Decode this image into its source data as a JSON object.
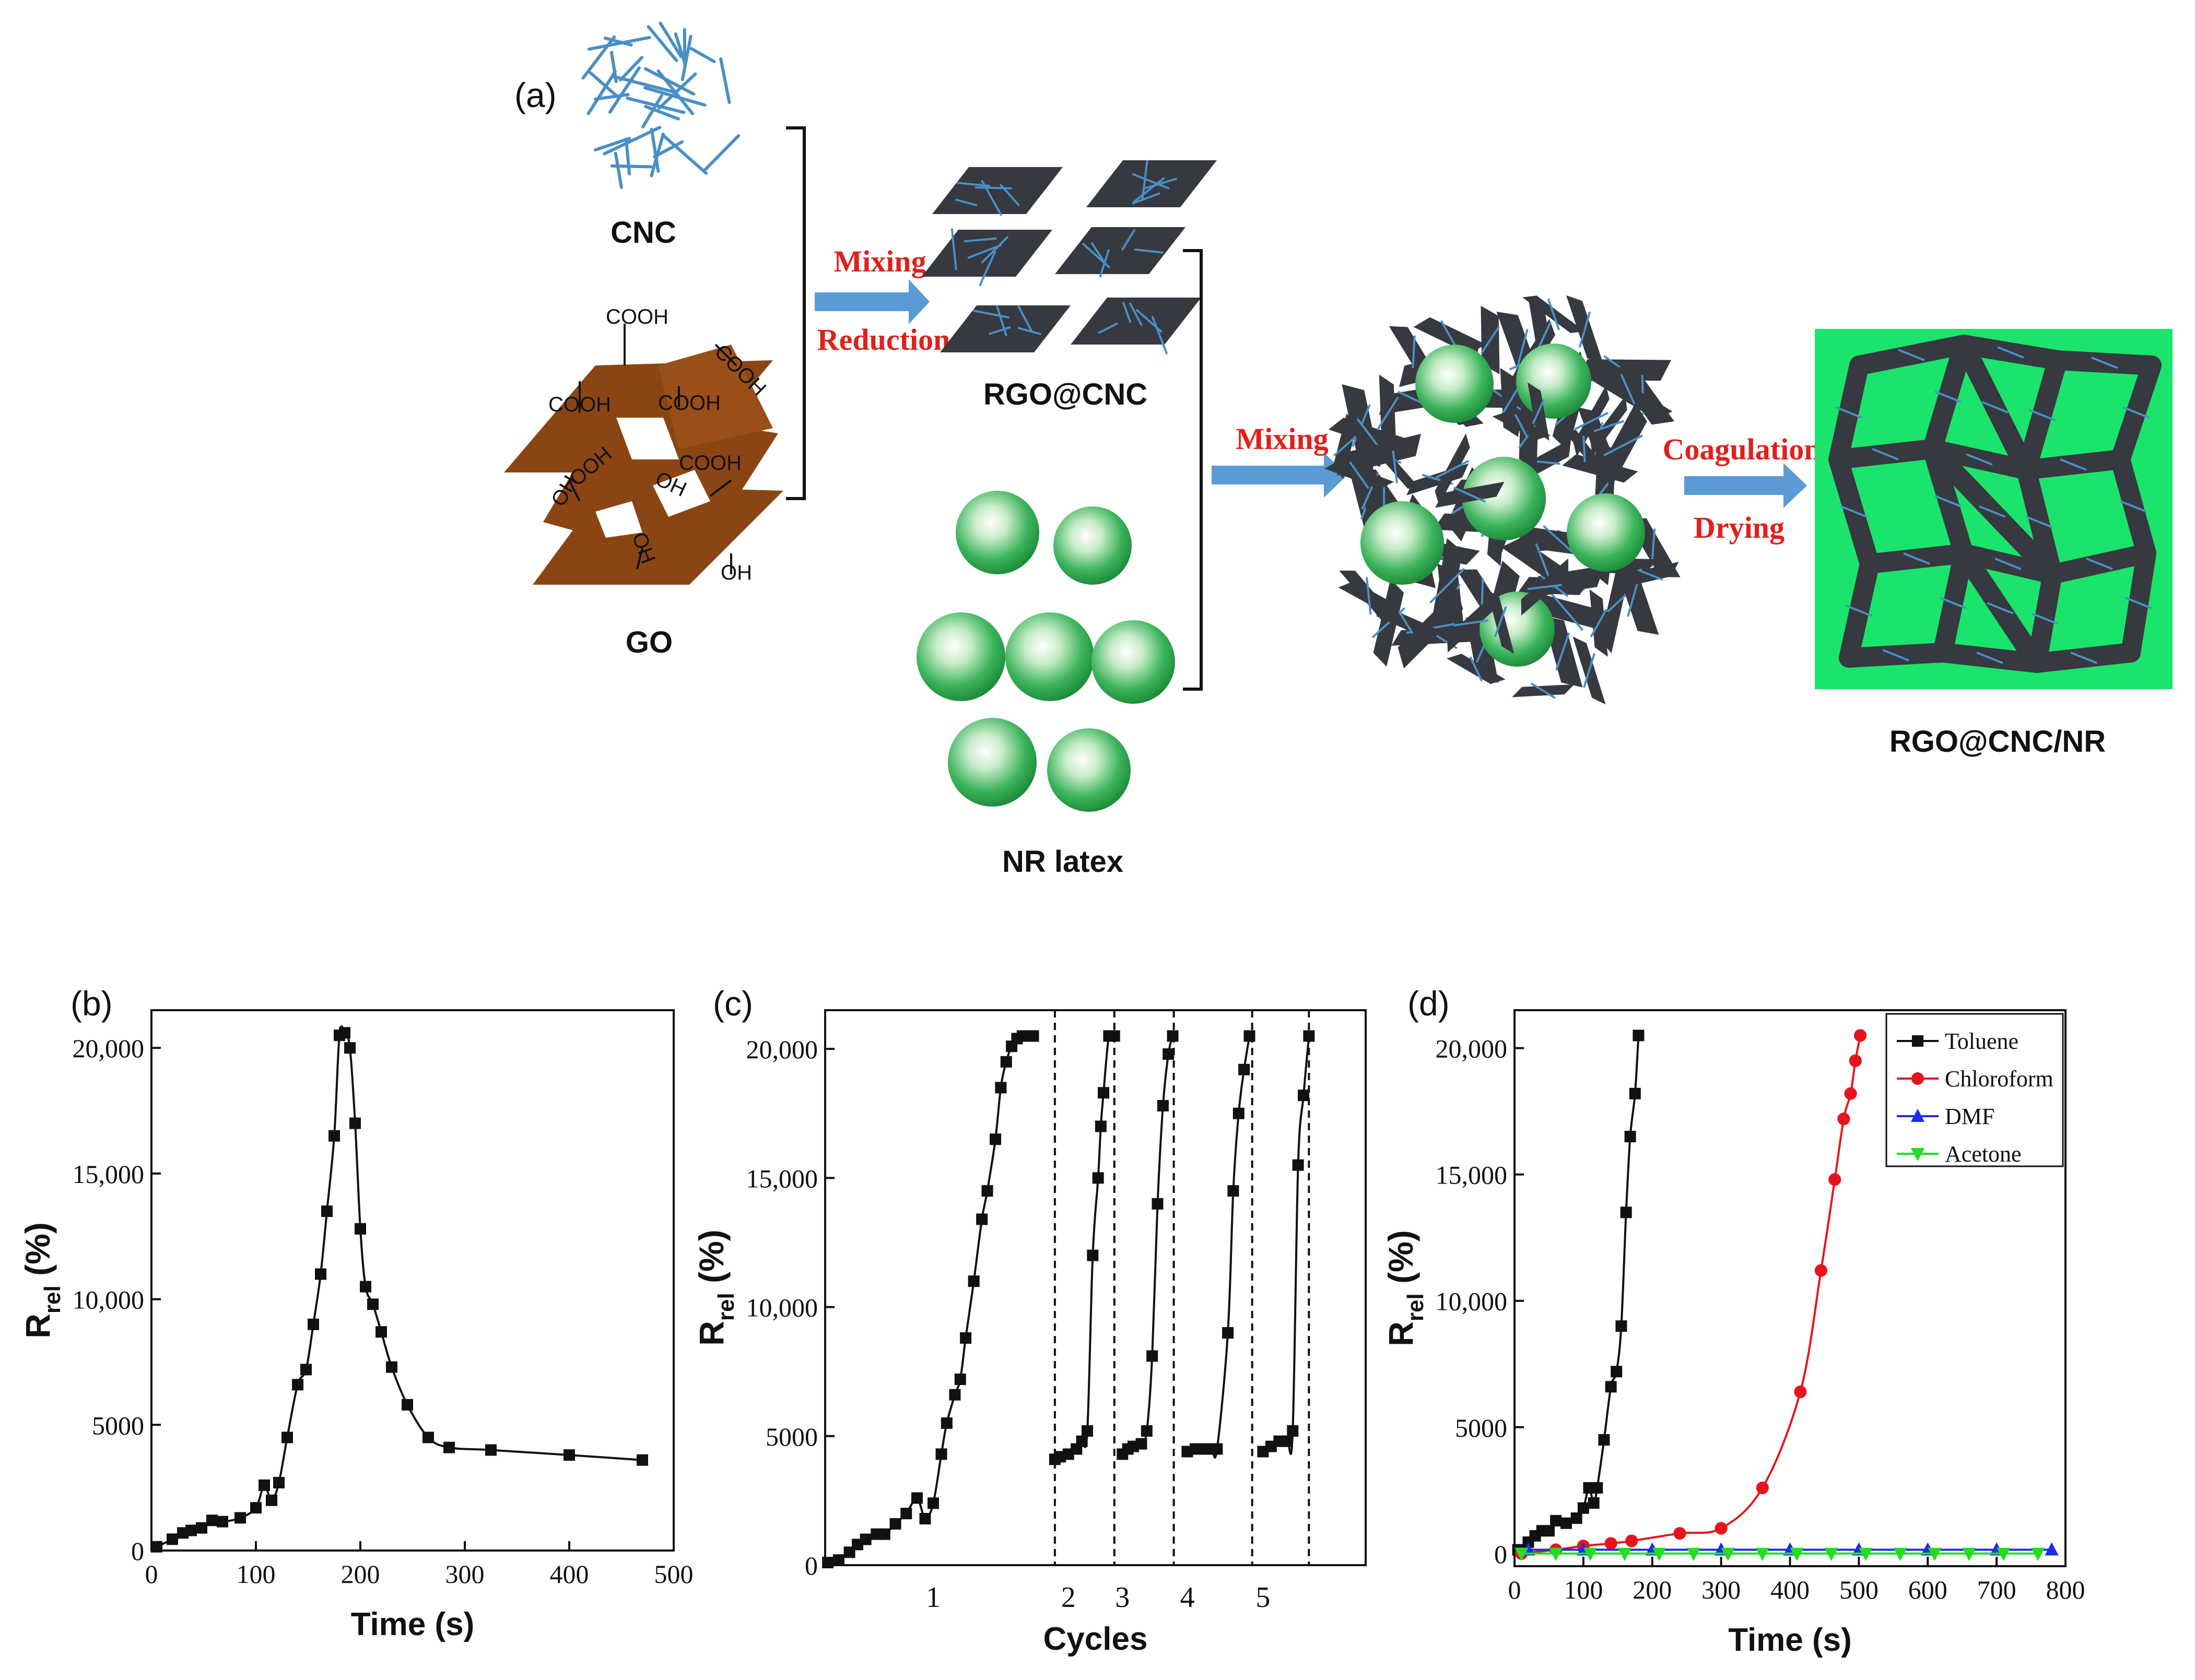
{
  "scheme": {
    "panel_label": "(a)",
    "labels": {
      "cnc": "CNC",
      "go": "GO",
      "rgo_cnc": "RGO@CNC",
      "nr_latex": "NR latex",
      "composite": "RGO@CNC/NR"
    },
    "go_groups": [
      "COOH",
      "COOH",
      "COOH",
      "COOH",
      "COOH",
      "OOH",
      "OH",
      "OH",
      "OH",
      "OH"
    ],
    "arrows": {
      "step1": [
        "Mixing",
        "Reduction"
      ],
      "step2": [
        "Mixing"
      ],
      "step3": [
        "Coagulation",
        "Drying"
      ]
    },
    "colors": {
      "cnc": "#4a8fc4",
      "go": "#8b4513",
      "rgo": "#36393f",
      "latex": "#3cb45c",
      "matrix": "#1be46c",
      "arrow": "#5b9bd5",
      "arrow_text": "#e0201c"
    }
  },
  "chart_data": [
    {
      "id": "b",
      "panel_label": "(b)",
      "type": "line",
      "xlabel": "Time (s)",
      "ylabel_main": "R",
      "ylabel_sub": "rel",
      "ylabel_tail": " (%)",
      "xlim": [
        0,
        500
      ],
      "ylim": [
        0,
        21500
      ],
      "xticks": [
        0,
        100,
        200,
        300,
        400,
        500
      ],
      "yticks": [
        0,
        5000,
        10000,
        15000,
        20000
      ],
      "ytick_labels": [
        "0",
        "5000",
        "10,000",
        "15,000",
        "20,000"
      ],
      "marker": "square",
      "series": [
        {
          "color": "#111111",
          "x": [
            5,
            20,
            30,
            38,
            48,
            58,
            68,
            85,
            100,
            108,
            115,
            122,
            130,
            140,
            148,
            155,
            162,
            168,
            175,
            180,
            185,
            190,
            195,
            200,
            205,
            212,
            220,
            230,
            245,
            265,
            285,
            325,
            400,
            470
          ],
          "y": [
            150,
            450,
            700,
            800,
            900,
            1200,
            1150,
            1300,
            1700,
            2600,
            2000,
            2700,
            4500,
            6600,
            7200,
            9000,
            11000,
            13500,
            16500,
            20500,
            20600,
            20000,
            17000,
            12800,
            10500,
            9800,
            8700,
            7300,
            5800,
            4500,
            4100,
            4000,
            3800,
            3600
          ]
        }
      ]
    },
    {
      "id": "c",
      "panel_label": "(c)",
      "type": "line",
      "xlabel": "Cycles",
      "ylabel_main": "R",
      "ylabel_sub": "rel",
      "ylabel_tail": " (%)",
      "xlim": [
        0,
        100
      ],
      "ylim": [
        0,
        21500
      ],
      "xticks": [],
      "yticks": [
        0,
        5000,
        10000,
        15000,
        20000
      ],
      "ytick_labels": [
        "0",
        "5000",
        "10,000",
        "15,000",
        "20,000"
      ],
      "category_labels": [
        {
          "label": "1",
          "x": 20
        },
        {
          "label": "2",
          "x": 45
        },
        {
          "label": "3",
          "x": 55
        },
        {
          "label": "4",
          "x": 67
        },
        {
          "label": "5",
          "x": 81
        }
      ],
      "dividers": [
        42.5,
        53.5,
        64.5,
        79,
        89.5
      ],
      "marker": "square",
      "series": [
        {
          "color": "#111111",
          "segments": [
            {
              "x": [
                0.5,
                2.5,
                4.5,
                6,
                7.5,
                9.5,
                11,
                13,
                15,
                17,
                18.5,
                20,
                21.5,
                22.5,
                24,
                25,
                26,
                27.5,
                29,
                30,
                31.5,
                32.5,
                33.5,
                34.5,
                35.5,
                36.5,
                37.5,
                38.5
              ],
              "y": [
                100,
                200,
                500,
                800,
                1000,
                1200,
                1200,
                1600,
                2000,
                2600,
                1800,
                2400,
                4300,
                5500,
                6600,
                7200,
                8800,
                11000,
                13400,
                14500,
                16500,
                18500,
                19500,
                20100,
                20400,
                20500,
                20500,
                20500
              ]
            },
            {
              "x": [
                42.5,
                43.5,
                45,
                46.5,
                47.5,
                48.5,
                49.5,
                50.5,
                51,
                51.5,
                52.5,
                53.5
              ],
              "y": [
                4100,
                4200,
                4300,
                4500,
                4800,
                5200,
                12000,
                15000,
                17000,
                18300,
                20500,
                20500
              ]
            },
            {
              "x": [
                55,
                56,
                57,
                58.5,
                59.5,
                60.5,
                61.5,
                62.5,
                63.5,
                64.3
              ],
              "y": [
                4300,
                4500,
                4600,
                4700,
                5200,
                8100,
                14000,
                17800,
                19800,
                20500
              ]
            },
            {
              "x": [
                67,
                68.5,
                70,
                71.5,
                72.5,
                74.5,
                75.5,
                76.5,
                77.5,
                78.5
              ],
              "y": [
                4400,
                4500,
                4500,
                4500,
                4500,
                9000,
                14500,
                17500,
                19200,
                20500
              ]
            },
            {
              "x": [
                81,
                82.5,
                84,
                85.5,
                86.5,
                87.5,
                88.5,
                89.5
              ],
              "y": [
                4400,
                4600,
                4800,
                4800,
                5200,
                15500,
                18200,
                20500
              ]
            }
          ]
        }
      ]
    },
    {
      "id": "d",
      "panel_label": "(d)",
      "type": "line",
      "xlabel": "Time (s)",
      "ylabel_main": "R",
      "ylabel_sub": "rel",
      "ylabel_tail": " (%)",
      "xlim": [
        0,
        800
      ],
      "ylim": [
        -500,
        21500
      ],
      "xticks": [
        0,
        100,
        200,
        300,
        400,
        500,
        600,
        700,
        800
      ],
      "yticks": [
        0,
        5000,
        10000,
        15000,
        20000
      ],
      "ytick_labels": [
        "0",
        "5000",
        "10,000",
        "15,000",
        "20,000"
      ],
      "legend_position": "top-right",
      "series": [
        {
          "name": "Toluene",
          "color": "#111111",
          "marker": "square",
          "x": [
            5,
            20,
            30,
            40,
            50,
            60,
            75,
            90,
            100,
            108,
            115,
            120,
            130,
            140,
            148,
            155,
            162,
            168,
            175,
            180
          ],
          "y": [
            150,
            450,
            700,
            900,
            900,
            1300,
            1200,
            1400,
            1800,
            2600,
            2000,
            2600,
            4500,
            6600,
            7200,
            9000,
            13500,
            16500,
            18200,
            20500
          ]
        },
        {
          "name": "Chloroform",
          "color": "#e8141c",
          "marker": "circle",
          "x": [
            10,
            60,
            100,
            140,
            170,
            240,
            300,
            360,
            415,
            445,
            465,
            478,
            488,
            495,
            502
          ],
          "y": [
            0,
            150,
            300,
            400,
            500,
            800,
            1000,
            2600,
            6400,
            11200,
            14800,
            17200,
            18200,
            19500,
            20500
          ]
        },
        {
          "name": "DMF",
          "color": "#1c2ce8",
          "marker": "triangle-up",
          "x": [
            20,
            100,
            200,
            300,
            400,
            500,
            600,
            700,
            780
          ],
          "y": [
            150,
            150,
            150,
            150,
            150,
            150,
            150,
            150,
            150
          ]
        },
        {
          "name": "Acetone",
          "color": "#22dd22",
          "marker": "triangle-down",
          "x": [
            10,
            60,
            110,
            160,
            210,
            260,
            310,
            360,
            410,
            460,
            510,
            560,
            610,
            660,
            710,
            760
          ],
          "y": [
            0,
            0,
            0,
            0,
            0,
            0,
            0,
            0,
            0,
            0,
            0,
            0,
            0,
            0,
            0,
            0
          ]
        }
      ]
    }
  ]
}
